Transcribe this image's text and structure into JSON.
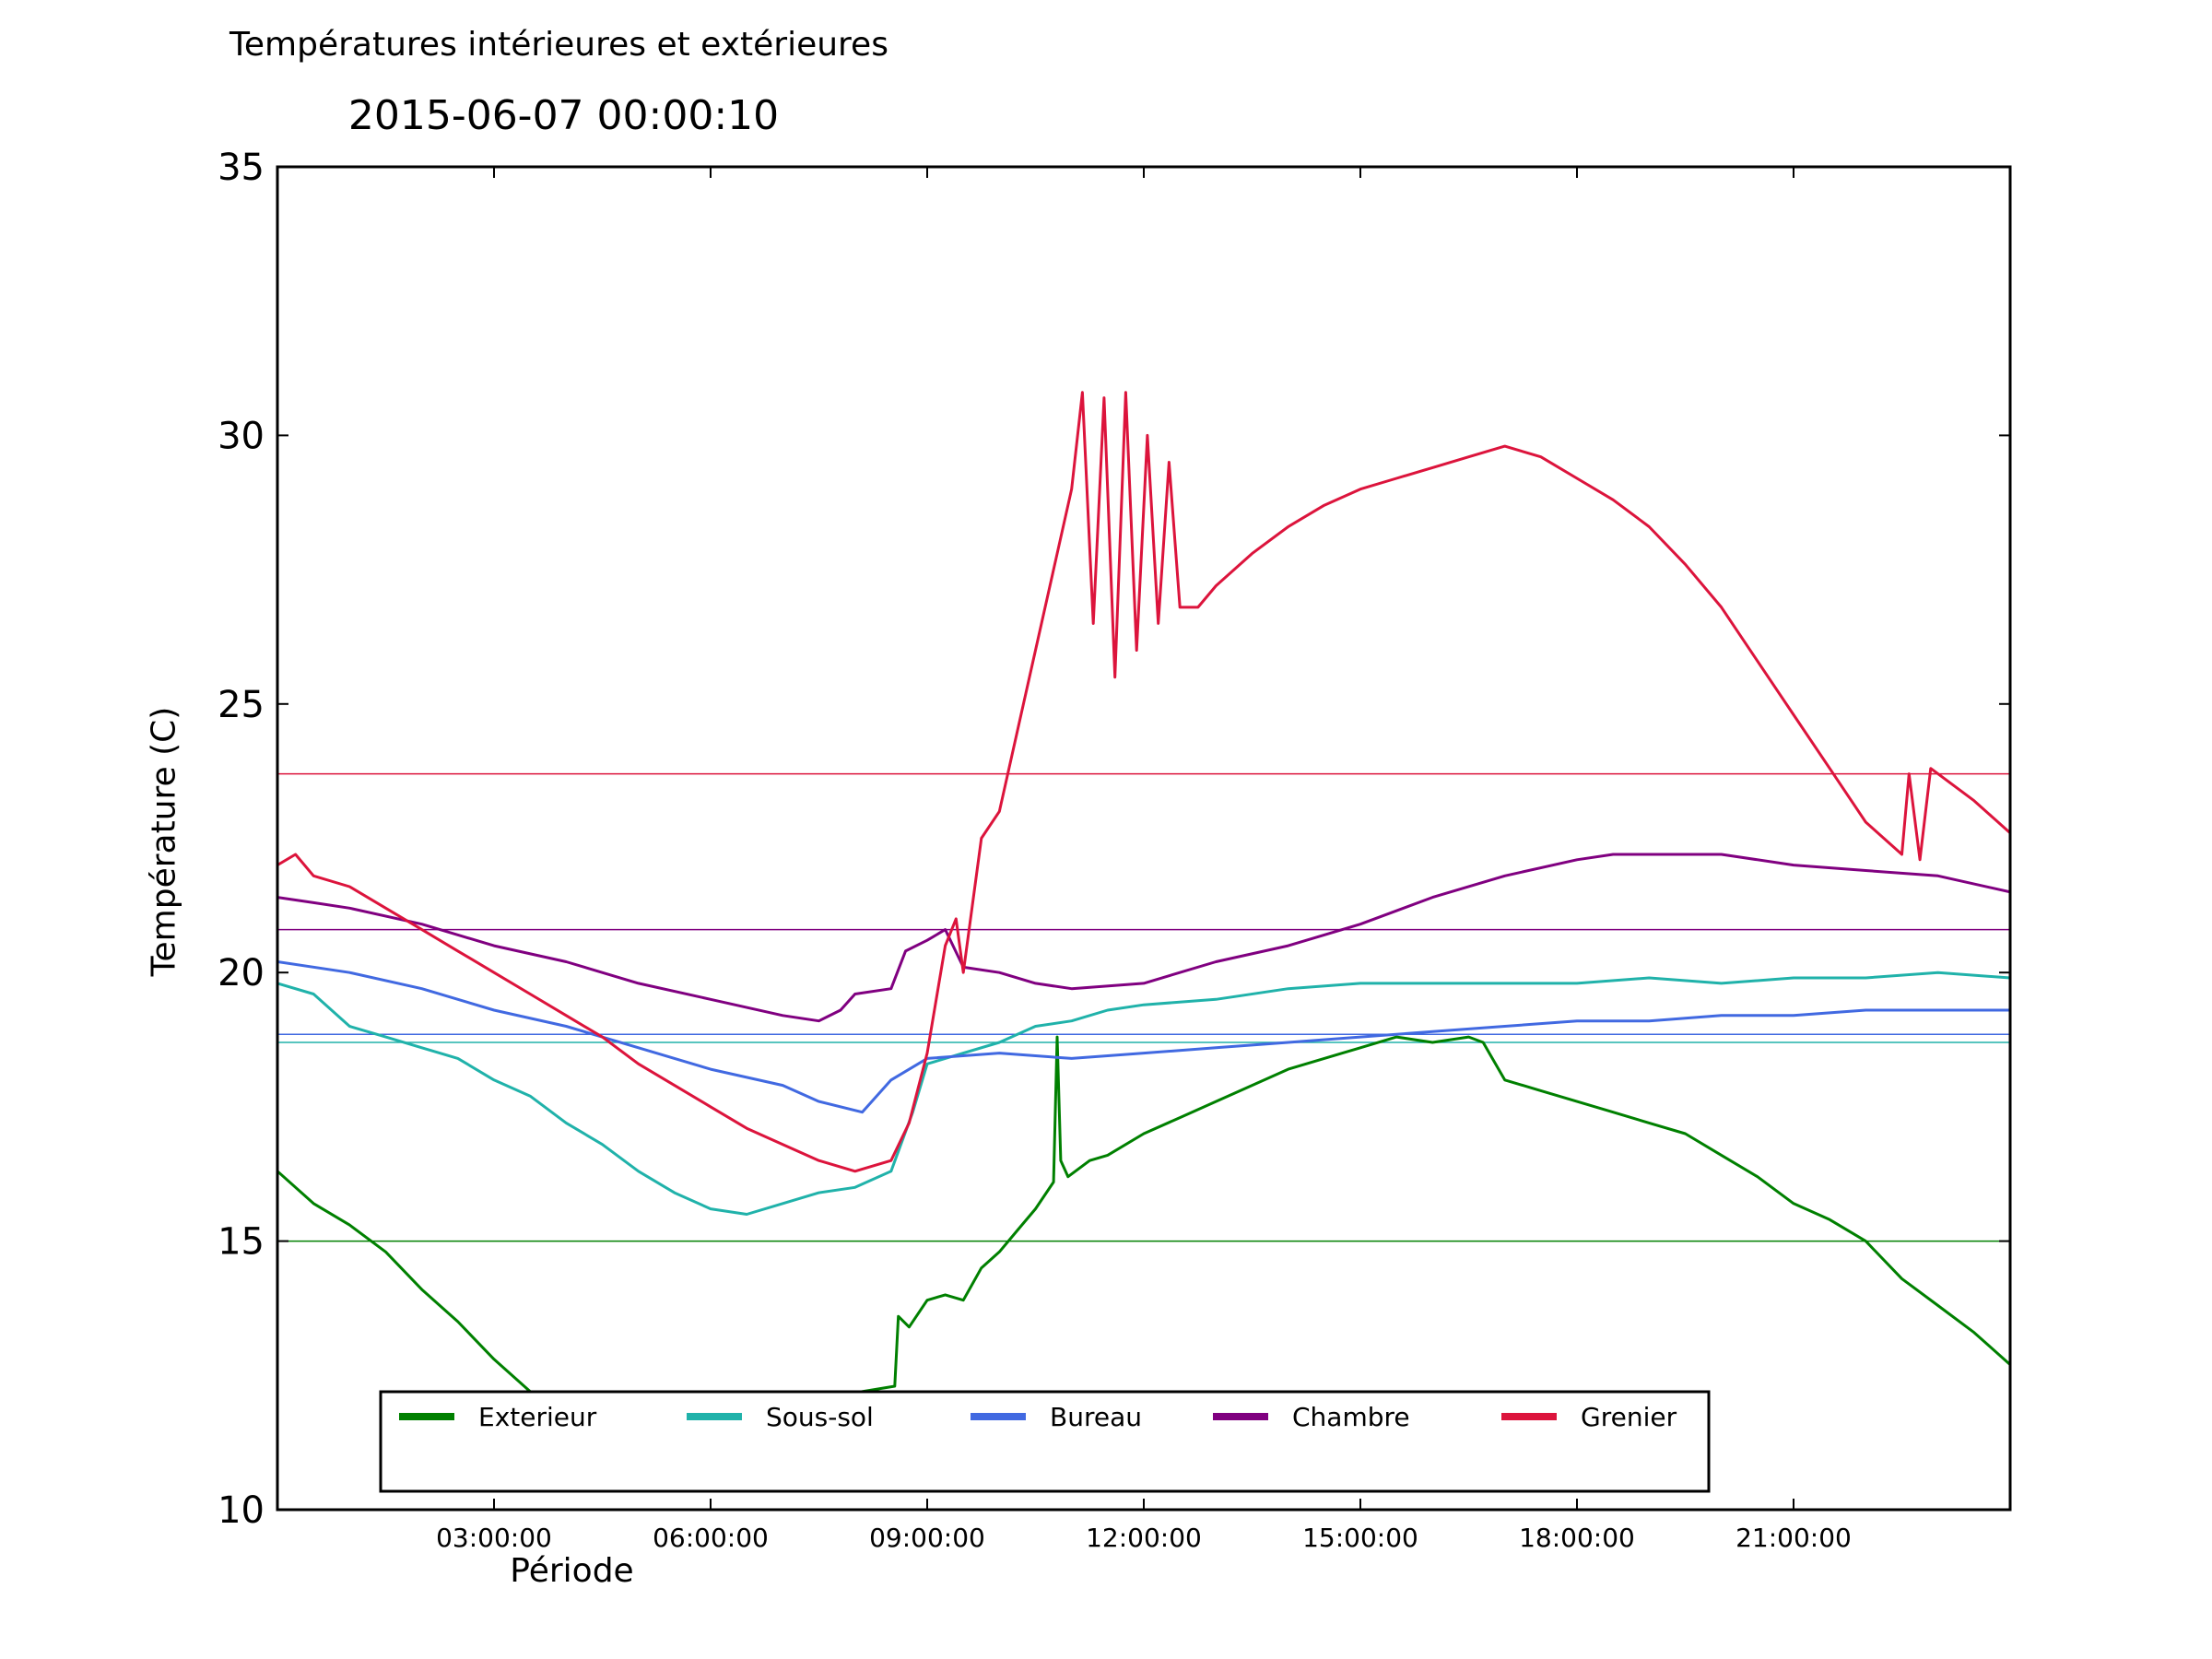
{
  "suptitle": "Températures intérieures et extérieures",
  "chart_data": {
    "type": "line",
    "title": "2015-06-07 00:00:10",
    "xlabel": "Période",
    "ylabel": "Température (C)",
    "xlim": [
      0,
      24
    ],
    "ylim": [
      10,
      35
    ],
    "yticks": [
      10,
      15,
      20,
      25,
      30,
      35
    ],
    "xticks": [
      3,
      6,
      9,
      12,
      15,
      18,
      21
    ],
    "xtick_labels": [
      "03:00:00",
      "06:00:00",
      "09:00:00",
      "12:00:00",
      "15:00:00",
      "18:00:00",
      "21:00:00"
    ],
    "grid": false,
    "legend_position": "lower-center",
    "series": [
      {
        "name": "Exterieur",
        "color": "#008000",
        "reference": 15.0,
        "x": [
          0,
          0.5,
          1,
          1.5,
          2,
          2.5,
          3,
          3.5,
          4,
          4.5,
          8.55,
          8.6,
          8.75,
          9,
          9.25,
          9.5,
          9.75,
          10,
          10.25,
          10.5,
          10.75,
          10.8,
          10.85,
          10.95,
          11.25,
          11.5,
          12,
          12.5,
          13,
          13.5,
          14,
          14.5,
          15,
          15.5,
          16,
          16.5,
          16.7,
          17,
          17.5,
          18,
          18.5,
          19,
          19.5,
          20,
          20.5,
          21,
          21.5,
          22,
          22.5,
          23,
          23.5,
          24
        ],
        "values": [
          16.3,
          15.7,
          15.3,
          14.8,
          14.1,
          13.5,
          12.8,
          12.2,
          11.7,
          11.4,
          12.3,
          13.6,
          13.4,
          13.9,
          14.0,
          13.9,
          14.5,
          14.8,
          15.2,
          15.6,
          16.1,
          18.8,
          16.5,
          16.2,
          16.5,
          16.6,
          17.0,
          17.3,
          17.6,
          17.9,
          18.2,
          18.4,
          18.6,
          18.8,
          18.7,
          18.8,
          18.7,
          18.0,
          17.8,
          17.6,
          17.4,
          17.2,
          17.0,
          16.6,
          16.2,
          15.7,
          15.4,
          15.0,
          14.3,
          13.8,
          13.3,
          12.7
        ]
      },
      {
        "name": "Sous-sol",
        "color": "#20B2AA",
        "reference": 18.7,
        "x": [
          0,
          0.5,
          1,
          1.5,
          2,
          2.5,
          3,
          3.5,
          4,
          4.5,
          5,
          5.5,
          6,
          6.5,
          7,
          7.5,
          8,
          8.5,
          8.8,
          9,
          9.5,
          10,
          10.5,
          11,
          11.5,
          12,
          13,
          14,
          15,
          16,
          17,
          18,
          19,
          20,
          21,
          22,
          23,
          24
        ],
        "values": [
          19.8,
          19.6,
          19.0,
          18.8,
          18.6,
          18.4,
          18.0,
          17.7,
          17.2,
          16.8,
          16.3,
          15.9,
          15.6,
          15.5,
          15.7,
          15.9,
          16.0,
          16.3,
          17.4,
          18.3,
          18.5,
          18.7,
          19.0,
          19.1,
          19.3,
          19.4,
          19.5,
          19.7,
          19.8,
          19.8,
          19.8,
          19.8,
          19.9,
          19.8,
          19.9,
          19.9,
          20.0,
          19.9
        ]
      },
      {
        "name": "Bureau",
        "color": "#4169E1",
        "reference": 18.85,
        "x": [
          0,
          1,
          2,
          3,
          4,
          5,
          6,
          7,
          7.5,
          8.1,
          8.5,
          9,
          10,
          11,
          12,
          13,
          14,
          15,
          16,
          17,
          18,
          19,
          20,
          21,
          22,
          23,
          24
        ],
        "values": [
          20.2,
          20.0,
          19.7,
          19.3,
          19.0,
          18.6,
          18.2,
          17.9,
          17.6,
          17.4,
          18.0,
          18.4,
          18.5,
          18.4,
          18.5,
          18.6,
          18.7,
          18.8,
          18.9,
          19.0,
          19.1,
          19.1,
          19.2,
          19.2,
          19.3,
          19.3,
          19.3
        ]
      },
      {
        "name": "Chambre",
        "color": "#800080",
        "reference": 20.8,
        "x": [
          0,
          0.5,
          1,
          2,
          3,
          4,
          5,
          6,
          7,
          7.5,
          7.8,
          8,
          8.5,
          8.7,
          9,
          9.25,
          9.5,
          10,
          10.5,
          11,
          12,
          13,
          14,
          15,
          16,
          17,
          18,
          18.5,
          19,
          20,
          21,
          22,
          23,
          24
        ],
        "values": [
          21.4,
          21.3,
          21.2,
          20.9,
          20.5,
          20.2,
          19.8,
          19.5,
          19.2,
          19.1,
          19.3,
          19.6,
          19.7,
          20.4,
          20.6,
          20.8,
          20.1,
          20.0,
          19.8,
          19.7,
          19.8,
          20.2,
          20.5,
          20.9,
          21.4,
          21.8,
          22.1,
          22.2,
          22.2,
          22.2,
          22.0,
          21.9,
          21.8,
          21.5
        ]
      },
      {
        "name": "Grenier",
        "color": "#DC143C",
        "reference": 23.7,
        "x": [
          0,
          0.25,
          0.5,
          1,
          1.5,
          2,
          2.5,
          3,
          3.5,
          4,
          4.5,
          5,
          5.5,
          6,
          6.5,
          7,
          7.5,
          8,
          8.5,
          8.75,
          9,
          9.25,
          9.4,
          9.5,
          9.75,
          10,
          10.25,
          10.5,
          10.75,
          11,
          11.15,
          11.3,
          11.45,
          11.6,
          11.75,
          11.9,
          12.05,
          12.2,
          12.35,
          12.5,
          12.75,
          13,
          13.5,
          14,
          14.5,
          15,
          15.5,
          16,
          16.5,
          17,
          17.5,
          18,
          18.5,
          19,
          19.5,
          20,
          20.5,
          21,
          21.5,
          22,
          22.5,
          22.6,
          22.75,
          22.9,
          23.2,
          23.5,
          23.75,
          24
        ],
        "values": [
          22.0,
          22.2,
          21.8,
          21.6,
          21.2,
          20.8,
          20.4,
          20.0,
          19.6,
          19.2,
          18.8,
          18.3,
          17.9,
          17.5,
          17.1,
          16.8,
          16.5,
          16.3,
          16.5,
          17.2,
          18.5,
          20.5,
          21.0,
          20.0,
          22.5,
          23.0,
          24.5,
          26.0,
          27.5,
          29.0,
          30.8,
          26.5,
          30.7,
          25.5,
          30.8,
          26.0,
          30.0,
          26.5,
          29.5,
          26.8,
          26.8,
          27.2,
          27.8,
          28.3,
          28.7,
          29.0,
          29.2,
          29.4,
          29.6,
          29.8,
          29.6,
          29.2,
          28.8,
          28.3,
          27.6,
          26.8,
          25.8,
          24.8,
          23.8,
          22.8,
          22.2,
          23.7,
          22.1,
          23.8,
          23.5,
          23.2,
          22.9,
          22.6
        ]
      }
    ]
  }
}
